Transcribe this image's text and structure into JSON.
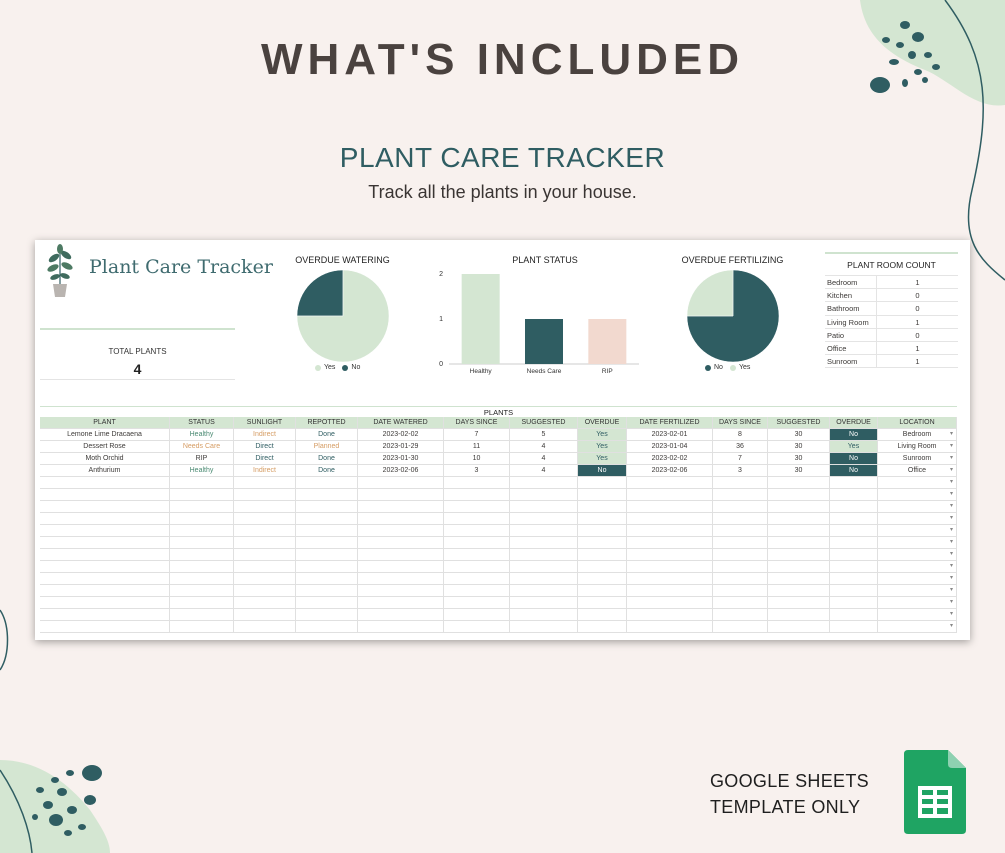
{
  "heading": "WHAT'S INCLUDED",
  "subtitle": "PLANT CARE TRACKER",
  "tagline": "Track all the plants in your house.",
  "sheet": {
    "title": "Plant Care Tracker",
    "total_label": "TOTAL PLANTS",
    "total_value": "4"
  },
  "charts": {
    "watering": {
      "title": "OVERDUE WATERING",
      "legend": [
        "Yes",
        "No"
      ]
    },
    "status": {
      "title": "PLANT STATUS"
    },
    "fertilizing": {
      "title": "OVERDUE FERTILIZING",
      "legend": [
        "No",
        "Yes"
      ]
    }
  },
  "chart_data": [
    {
      "type": "pie",
      "title": "OVERDUE WATERING",
      "labels": [
        "Yes",
        "No"
      ],
      "values": [
        3,
        1
      ],
      "colors": [
        "#d4e6d2",
        "#2f5d62"
      ]
    },
    {
      "type": "bar",
      "title": "PLANT STATUS",
      "categories": [
        "Healthy",
        "Needs Care",
        "RIP"
      ],
      "values": [
        2,
        1,
        1
      ],
      "ylim": [
        0,
        2
      ],
      "yticks": [
        "0",
        "1",
        "2"
      ],
      "colors": [
        "#d4e6d2",
        "#2f5d62",
        "#f2d9cf"
      ]
    },
    {
      "type": "pie",
      "title": "OVERDUE FERTILIZING",
      "labels": [
        "No",
        "Yes"
      ],
      "values": [
        3,
        1
      ],
      "colors": [
        "#2f5d62",
        "#d4e6d2"
      ]
    }
  ],
  "room_count": {
    "title": "PLANT ROOM COUNT",
    "rows": [
      [
        "Bedroom",
        "1"
      ],
      [
        "Kitchen",
        "0"
      ],
      [
        "Bathroom",
        "0"
      ],
      [
        "Living Room",
        "1"
      ],
      [
        "Patio",
        "0"
      ],
      [
        "Office",
        "1"
      ],
      [
        "Sunroom",
        "1"
      ]
    ]
  },
  "table": {
    "caption": "PLANTS",
    "headers": [
      "PLANT",
      "STATUS",
      "SUNLIGHT",
      "REPOTTED",
      "DATE WATERED",
      "DAYS SINCE",
      "SUGGESTED",
      "OVERDUE",
      "DATE FERTILIZED",
      "DAYS SINCE",
      "SUGGESTED",
      "OVERDUE",
      "LOCATION"
    ],
    "rows": [
      [
        "Lemone Lime Dracaena",
        "Healthy",
        "Indirect",
        "Done",
        "2023-02-02",
        "7",
        "5",
        "Yes",
        "2023-02-01",
        "8",
        "30",
        "No",
        "Bedroom"
      ],
      [
        "Dessert Rose",
        "Needs Care",
        "Direct",
        "Planned",
        "2023-01-29",
        "11",
        "4",
        "Yes",
        "2023-01-04",
        "36",
        "30",
        "Yes",
        "Living Room"
      ],
      [
        "Moth Orchid",
        "RIP",
        "Direct",
        "Done",
        "2023-01-30",
        "10",
        "4",
        "Yes",
        "2023-02-02",
        "7",
        "30",
        "No",
        "Sunroom"
      ],
      [
        "Anthurium",
        "Healthy",
        "Indirect",
        "Done",
        "2023-02-06",
        "3",
        "4",
        "No",
        "2023-02-06",
        "3",
        "30",
        "No",
        "Office"
      ]
    ]
  },
  "footer": {
    "line1": "GOOGLE SHEETS",
    "line2": "TEMPLATE ONLY"
  },
  "colors": {
    "accent": "#2f5d62",
    "light_green": "#d4e6d2",
    "peach": "#f2d9cf",
    "background": "#f8f1ee",
    "sheets_green": "#1fa463"
  }
}
